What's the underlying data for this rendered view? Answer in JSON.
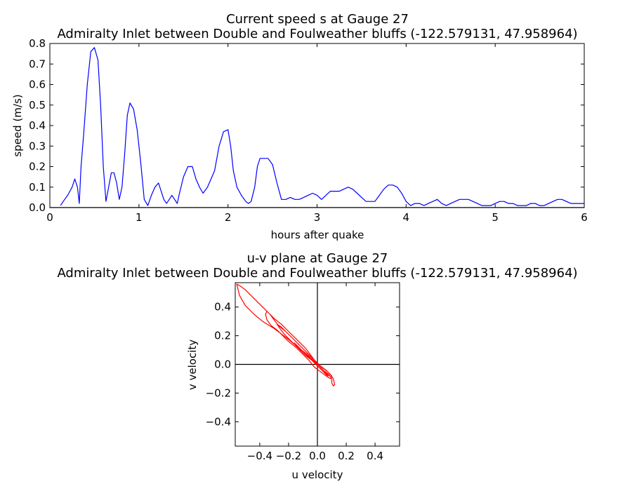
{
  "chart_data": [
    {
      "type": "line",
      "title": [
        "Current speed s at Gauge 27",
        "Admiralty Inlet between Double and Foulweather bluffs  (-122.579131, 47.958964)"
      ],
      "xlabel": "hours after quake",
      "ylabel": "speed (m/s)",
      "xlim": [
        0,
        6
      ],
      "ylim": [
        0,
        0.8
      ],
      "xticks": [
        0,
        1,
        2,
        3,
        4,
        5,
        6
      ],
      "xtick_labels": [
        "0",
        "1",
        "2",
        "3",
        "4",
        "5",
        "6"
      ],
      "yticks": [
        0.0,
        0.1,
        0.2,
        0.3,
        0.4,
        0.5,
        0.6,
        0.7,
        0.8
      ],
      "ytick_labels": [
        "0.0",
        "0.1",
        "0.2",
        "0.3",
        "0.4",
        "0.5",
        "0.6",
        "0.7",
        "0.8"
      ],
      "grid": false,
      "color": "#0000ff",
      "x": [
        0.12,
        0.15,
        0.2,
        0.25,
        0.28,
        0.31,
        0.33,
        0.35,
        0.38,
        0.42,
        0.46,
        0.5,
        0.54,
        0.57,
        0.6,
        0.63,
        0.66,
        0.69,
        0.72,
        0.75,
        0.78,
        0.81,
        0.84,
        0.87,
        0.9,
        0.94,
        0.98,
        1.02,
        1.06,
        1.1,
        1.14,
        1.18,
        1.22,
        1.25,
        1.28,
        1.31,
        1.34,
        1.37,
        1.4,
        1.43,
        1.45,
        1.5,
        1.55,
        1.6,
        1.64,
        1.68,
        1.72,
        1.77,
        1.8,
        1.85,
        1.9,
        1.95,
        2.0,
        2.03,
        2.06,
        2.1,
        2.15,
        2.2,
        2.23,
        2.26,
        2.3,
        2.33,
        2.36,
        2.4,
        2.45,
        2.5,
        2.55,
        2.6,
        2.65,
        2.7,
        2.75,
        2.8,
        2.85,
        2.9,
        2.95,
        3.0,
        3.05,
        3.1,
        3.15,
        3.2,
        3.25,
        3.3,
        3.35,
        3.4,
        3.45,
        3.5,
        3.55,
        3.6,
        3.65,
        3.7,
        3.75,
        3.8,
        3.85,
        3.9,
        3.95,
        4.0,
        4.05,
        4.1,
        4.15,
        4.2,
        4.25,
        4.3,
        4.35,
        4.4,
        4.45,
        4.5,
        4.55,
        4.6,
        4.65,
        4.7,
        4.75,
        4.8,
        4.85,
        4.9,
        4.95,
        5.0,
        5.05,
        5.1,
        5.15,
        5.2,
        5.25,
        5.3,
        5.35,
        5.4,
        5.45,
        5.5,
        5.55,
        5.6,
        5.65,
        5.7,
        5.75,
        5.8,
        5.85,
        5.9,
        5.95,
        6.0
      ],
      "values": [
        0.01,
        0.03,
        0.06,
        0.1,
        0.14,
        0.1,
        0.02,
        0.2,
        0.36,
        0.6,
        0.76,
        0.78,
        0.72,
        0.5,
        0.2,
        0.03,
        0.1,
        0.17,
        0.17,
        0.12,
        0.04,
        0.1,
        0.26,
        0.45,
        0.51,
        0.48,
        0.38,
        0.22,
        0.04,
        0.01,
        0.06,
        0.1,
        0.12,
        0.08,
        0.04,
        0.02,
        0.04,
        0.06,
        0.04,
        0.02,
        0.06,
        0.15,
        0.2,
        0.2,
        0.14,
        0.1,
        0.07,
        0.1,
        0.13,
        0.18,
        0.3,
        0.37,
        0.38,
        0.3,
        0.18,
        0.1,
        0.06,
        0.03,
        0.02,
        0.03,
        0.1,
        0.2,
        0.24,
        0.24,
        0.24,
        0.21,
        0.12,
        0.04,
        0.04,
        0.05,
        0.04,
        0.04,
        0.05,
        0.06,
        0.07,
        0.06,
        0.04,
        0.06,
        0.08,
        0.08,
        0.08,
        0.09,
        0.1,
        0.09,
        0.07,
        0.05,
        0.03,
        0.03,
        0.03,
        0.06,
        0.09,
        0.11,
        0.11,
        0.1,
        0.07,
        0.03,
        0.01,
        0.02,
        0.02,
        0.01,
        0.02,
        0.03,
        0.04,
        0.02,
        0.01,
        0.02,
        0.03,
        0.04,
        0.04,
        0.04,
        0.03,
        0.02,
        0.01,
        0.01,
        0.01,
        0.02,
        0.03,
        0.03,
        0.02,
        0.02,
        0.01,
        0.01,
        0.01,
        0.02,
        0.02,
        0.01,
        0.01,
        0.02,
        0.03,
        0.04,
        0.04,
        0.03,
        0.02,
        0.02,
        0.02,
        0.02
      ]
    },
    {
      "type": "line",
      "title": [
        "u-v plane at Gauge 27",
        "Admiralty Inlet between Double and Foulweather bluffs  (-122.579131, 47.958964)"
      ],
      "xlabel": "u velocity",
      "ylabel": "v velocity",
      "xlim": [
        -0.57,
        0.57
      ],
      "ylim": [
        -0.57,
        0.57
      ],
      "xticks": [
        -0.4,
        -0.2,
        0.0,
        0.2,
        0.4
      ],
      "xtick_labels": [
        "−0.4",
        "−0.2",
        "0.0",
        "0.2",
        "0.4"
      ],
      "yticks": [
        -0.4,
        -0.2,
        0.0,
        0.2,
        0.4
      ],
      "ytick_labels": [
        "−0.4",
        "−0.2",
        "0.0",
        "0.2",
        "0.4"
      ],
      "grid": false,
      "zero_lines": true,
      "color": "#ff0000",
      "u": [
        0.0,
        -0.02,
        -0.05,
        -0.08,
        -0.12,
        -0.16,
        -0.2,
        -0.25,
        -0.3,
        -0.35,
        -0.4,
        -0.45,
        -0.5,
        -0.54,
        -0.56,
        -0.54,
        -0.5,
        -0.44,
        -0.38,
        -0.3,
        -0.22,
        -0.16,
        -0.1,
        -0.05,
        0.0,
        0.04,
        0.08,
        0.1,
        0.1,
        0.11,
        0.12,
        0.11,
        0.09,
        0.06,
        0.02,
        -0.02,
        -0.06,
        -0.1,
        -0.14,
        -0.18,
        -0.22,
        -0.27,
        -0.3,
        -0.33,
        -0.35,
        -0.36,
        -0.35,
        -0.32,
        -0.28,
        -0.24,
        -0.2,
        -0.15,
        -0.1,
        -0.06,
        -0.02,
        0.02,
        0.06,
        0.09,
        0.1,
        0.07,
        0.03,
        -0.01,
        -0.06,
        -0.11,
        -0.16,
        -0.21,
        -0.25,
        -0.28,
        -0.26,
        -0.22,
        -0.17,
        -0.12,
        -0.08,
        -0.04,
        -0.01,
        0.03,
        0.06,
        0.08,
        0.05,
        0.01,
        -0.03,
        -0.07,
        -0.11,
        -0.14,
        -0.16,
        -0.13,
        -0.09,
        -0.05,
        -0.01,
        0.02,
        0.05,
        0.07,
        0.05,
        0.02,
        -0.01,
        -0.04,
        -0.07,
        -0.05,
        -0.02,
        0.01,
        0.03
      ],
      "v": [
        0.0,
        0.03,
        0.07,
        0.11,
        0.15,
        0.19,
        0.23,
        0.28,
        0.32,
        0.37,
        0.42,
        0.47,
        0.52,
        0.55,
        0.56,
        0.48,
        0.41,
        0.35,
        0.3,
        0.25,
        0.19,
        0.14,
        0.09,
        0.04,
        0.0,
        -0.04,
        -0.07,
        -0.1,
        -0.13,
        -0.15,
        -0.14,
        -0.1,
        -0.07,
        -0.04,
        -0.01,
        0.03,
        0.07,
        0.11,
        0.15,
        0.19,
        0.23,
        0.27,
        0.31,
        0.35,
        0.37,
        0.35,
        0.31,
        0.27,
        0.24,
        0.2,
        0.16,
        0.12,
        0.07,
        0.03,
        -0.02,
        -0.05,
        -0.08,
        -0.1,
        -0.08,
        -0.05,
        -0.02,
        0.02,
        0.07,
        0.12,
        0.17,
        0.22,
        0.26,
        0.28,
        0.25,
        0.2,
        0.15,
        0.1,
        0.06,
        0.03,
        0.01,
        -0.03,
        -0.06,
        -0.08,
        -0.05,
        -0.01,
        0.03,
        0.07,
        0.1,
        0.13,
        0.15,
        0.12,
        0.08,
        0.04,
        0.0,
        -0.03,
        -0.06,
        -0.08,
        -0.05,
        -0.02,
        0.01,
        0.04,
        0.07,
        0.04,
        0.01,
        -0.01,
        -0.03
      ]
    }
  ]
}
